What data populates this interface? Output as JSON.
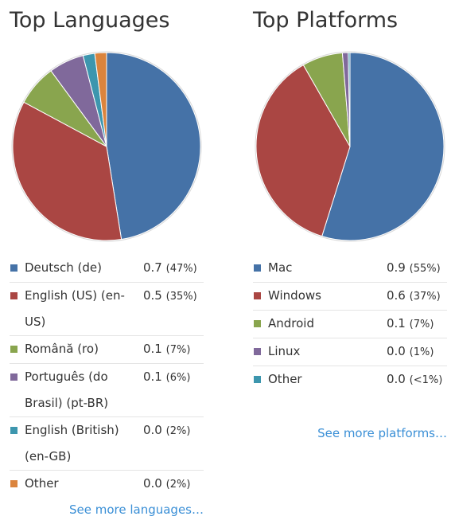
{
  "colors": {
    "blue": "#4572a7",
    "red": "#aa4643",
    "green": "#89a54e",
    "purple": "#80699b",
    "teal": "#3d96ae",
    "orange": "#db843d"
  },
  "languages": {
    "title": "Top Languages",
    "more_link": "See more languages…",
    "items": [
      {
        "label": "Deutsch (de)",
        "value": "0.7",
        "pct": "(47%)"
      },
      {
        "label": "English (US) (en-US)",
        "value": "0.5",
        "pct": "(35%)"
      },
      {
        "label": "Română (ro)",
        "value": "0.1",
        "pct": "(7%)"
      },
      {
        "label": "Português (do Brasil) (pt-BR)",
        "value": "0.1",
        "pct": "(6%)"
      },
      {
        "label": "English (British) (en-GB)",
        "value": "0.0",
        "pct": "(2%)"
      },
      {
        "label": "Other",
        "value": "0.0",
        "pct": "(2%)"
      }
    ]
  },
  "platforms": {
    "title": "Top Platforms",
    "more_link": "See more platforms…",
    "items": [
      {
        "label": "Mac",
        "value": "0.9",
        "pct": "(55%)"
      },
      {
        "label": "Windows",
        "value": "0.6",
        "pct": "(37%)"
      },
      {
        "label": "Android",
        "value": "0.1",
        "pct": "(7%)"
      },
      {
        "label": "Linux",
        "value": "0.0",
        "pct": "(1%)"
      },
      {
        "label": "Other",
        "value": "0.0",
        "pct": "(<1%)"
      }
    ]
  },
  "chart_data": [
    {
      "type": "pie",
      "title": "Top Languages",
      "categories": [
        "Deutsch (de)",
        "English (US) (en-US)",
        "Română (ro)",
        "Português (do Brasil) (pt-BR)",
        "English (British) (en-GB)",
        "Other"
      ],
      "values": [
        47,
        35,
        7,
        6,
        2,
        2
      ],
      "colors": [
        "#4572a7",
        "#aa4643",
        "#89a54e",
        "#80699b",
        "#3d96ae",
        "#db843d"
      ]
    },
    {
      "type": "pie",
      "title": "Top Platforms",
      "categories": [
        "Mac",
        "Windows",
        "Android",
        "Linux",
        "Other"
      ],
      "values": [
        55,
        37,
        7,
        1,
        0.3
      ],
      "colors": [
        "#4572a7",
        "#aa4643",
        "#89a54e",
        "#80699b",
        "#3d96ae"
      ]
    }
  ]
}
